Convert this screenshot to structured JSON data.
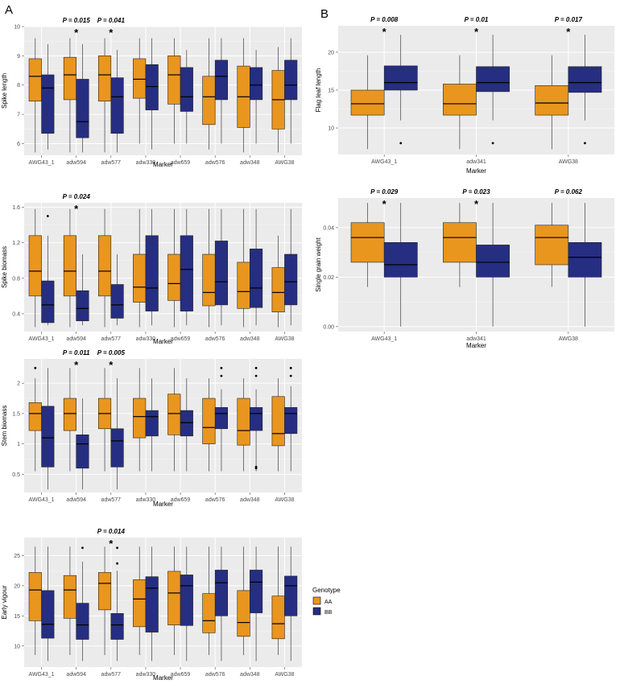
{
  "panel_labels": [
    "A",
    "B"
  ],
  "colors": {
    "AA": "#e8961e",
    "BB": "#262e82",
    "panel_bg": "#ebebeb",
    "grid": "#ffffff"
  },
  "legend": {
    "title": "Genotype",
    "items": [
      "AA",
      "BB"
    ]
  },
  "chart_data": [
    {
      "type": "box",
      "panel": "A",
      "xlabel": "Marker",
      "ylabel": "Spike length",
      "ylim": [
        5.6,
        10
      ],
      "yticks": [
        6,
        7,
        8,
        9,
        10
      ],
      "categories": [
        "AWG43_1",
        "adw594",
        "adw577",
        "adw330",
        "adw659",
        "adw576",
        "adw348",
        "AWG38"
      ],
      "series": [
        {
          "name": "AA",
          "boxes": [
            [
              5.7,
              7.45,
              8.3,
              8.9,
              9.6
            ],
            [
              5.7,
              7.5,
              8.35,
              8.95,
              9.6
            ],
            [
              5.7,
              7.45,
              8.35,
              9.0,
              9.6
            ],
            [
              6.0,
              7.55,
              8.2,
              8.9,
              9.6
            ],
            [
              6.0,
              7.35,
              8.35,
              9.0,
              9.6
            ],
            [
              5.8,
              6.65,
              7.6,
              8.3,
              9.6
            ],
            [
              5.7,
              6.55,
              7.6,
              8.65,
              9.6
            ],
            [
              5.7,
              6.5,
              7.5,
              8.5,
              9.3
            ]
          ]
        },
        {
          "name": "BB",
          "boxes": [
            [
              5.8,
              6.35,
              7.9,
              8.35,
              9.4
            ],
            [
              5.7,
              6.2,
              6.75,
              8.2,
              9.4
            ],
            [
              5.7,
              6.35,
              7.6,
              8.25,
              9.2
            ],
            [
              5.8,
              7.15,
              7.95,
              8.7,
              9.6
            ],
            [
              6.0,
              7.1,
              7.6,
              8.6,
              9.2
            ],
            [
              6.0,
              7.5,
              8.3,
              8.85,
              9.6
            ],
            [
              6.0,
              7.5,
              8.0,
              8.6,
              9.2
            ],
            [
              6.0,
              7.5,
              8.0,
              8.85,
              9.6
            ]
          ]
        }
      ],
      "outliers": [],
      "annotations": [
        {
          "category": "adw594",
          "p": "P = 0.015",
          "star": "*"
        },
        {
          "category": "adw577",
          "p": "P = 0.041",
          "star": "*"
        }
      ]
    },
    {
      "type": "box",
      "panel": "A",
      "xlabel": "Marker",
      "ylabel": "Spike biomass",
      "ylim": [
        0.2,
        1.65
      ],
      "yticks": [
        0.4,
        0.8,
        1.2,
        1.6
      ],
      "categories": [
        "AWG43_1",
        "adw594",
        "adw577",
        "adw330",
        "adw659",
        "adw576",
        "adw348",
        "AWG38"
      ],
      "series": [
        {
          "name": "AA",
          "boxes": [
            [
              0.25,
              0.6,
              0.88,
              1.28,
              1.58
            ],
            [
              0.25,
              0.6,
              0.88,
              1.28,
              1.58
            ],
            [
              0.25,
              0.6,
              0.88,
              1.28,
              1.58
            ],
            [
              0.25,
              0.53,
              0.7,
              1.07,
              1.58
            ],
            [
              0.25,
              0.55,
              0.74,
              1.07,
              1.58
            ],
            [
              0.25,
              0.49,
              0.64,
              1.07,
              1.58
            ],
            [
              0.25,
              0.46,
              0.65,
              0.98,
              1.58
            ],
            [
              0.25,
              0.42,
              0.64,
              0.92,
              1.28
            ]
          ]
        },
        {
          "name": "BB",
          "boxes": [
            [
              0.27,
              0.3,
              0.5,
              0.77,
              1.28
            ],
            [
              0.27,
              0.32,
              0.46,
              0.66,
              1.07
            ],
            [
              0.27,
              0.35,
              0.5,
              0.73,
              1.07
            ],
            [
              0.27,
              0.43,
              0.69,
              1.28,
              1.58
            ],
            [
              0.27,
              0.43,
              0.9,
              1.28,
              1.58
            ],
            [
              0.27,
              0.5,
              0.76,
              1.22,
              1.58
            ],
            [
              0.27,
              0.47,
              0.69,
              1.13,
              1.58
            ],
            [
              0.27,
              0.5,
              0.76,
              1.07,
              1.58
            ]
          ]
        }
      ],
      "outliers": [
        {
          "category": "AWG43_1",
          "series": "BB",
          "value": 1.5
        }
      ],
      "annotations": [
        {
          "category": "adw594",
          "p": "P = 0.024",
          "star": "*"
        }
      ]
    },
    {
      "type": "box",
      "panel": "A",
      "xlabel": "Marker",
      "ylabel": "Stem biomass",
      "ylim": [
        0.2,
        2.4
      ],
      "yticks": [
        0.5,
        1.0,
        1.5,
        2.0
      ],
      "categories": [
        "AWG43_1",
        "adw594",
        "adw577",
        "adw330",
        "adw659",
        "adw576",
        "adw348",
        "AWG38"
      ],
      "series": [
        {
          "name": "AA",
          "boxes": [
            [
              0.55,
              1.22,
              1.5,
              1.68,
              2.08
            ],
            [
              0.55,
              1.22,
              1.5,
              1.75,
              2.25
            ],
            [
              0.55,
              1.25,
              1.5,
              1.75,
              2.25
            ],
            [
              0.55,
              1.1,
              1.45,
              1.75,
              2.25
            ],
            [
              0.55,
              1.15,
              1.5,
              1.82,
              2.25
            ],
            [
              0.55,
              1.0,
              1.27,
              1.75,
              2.08
            ],
            [
              0.55,
              0.98,
              1.22,
              1.75,
              2.08
            ],
            [
              0.55,
              0.97,
              1.17,
              1.78,
              2.08
            ]
          ]
        },
        {
          "name": "BB",
          "boxes": [
            [
              0.25,
              0.62,
              1.1,
              1.62,
              2.25
            ],
            [
              0.25,
              0.6,
              1.0,
              1.15,
              1.75
            ],
            [
              0.25,
              0.62,
              1.05,
              1.25,
              2.08
            ],
            [
              0.55,
              1.13,
              1.45,
              1.55,
              2.08
            ],
            [
              0.55,
              1.13,
              1.35,
              1.55,
              2.08
            ],
            [
              0.55,
              1.25,
              1.5,
              1.6,
              1.9
            ],
            [
              0.55,
              1.22,
              1.5,
              1.6,
              1.9
            ],
            [
              0.55,
              1.17,
              1.5,
              1.6,
              1.95
            ]
          ]
        }
      ],
      "outliers": [
        {
          "category": "AWG43_1",
          "series": "AA",
          "value": 2.25
        },
        {
          "category": "adw576",
          "series": "BB",
          "value": 2.25
        },
        {
          "category": "adw576",
          "series": "BB",
          "value": 2.12
        },
        {
          "category": "adw348",
          "series": "BB",
          "value": 2.25
        },
        {
          "category": "adw348",
          "series": "BB",
          "value": 2.12
        },
        {
          "category": "adw348",
          "series": "BB",
          "value": 0.62
        },
        {
          "category": "adw348",
          "series": "BB",
          "value": 0.6
        },
        {
          "category": "AWG38",
          "series": "BB",
          "value": 2.25
        },
        {
          "category": "AWG38",
          "series": "BB",
          "value": 2.12
        }
      ],
      "annotations": [
        {
          "category": "adw594",
          "p": "P = 0.011",
          "star": "*"
        },
        {
          "category": "adw577",
          "p": "P = 0.005",
          "star": "*"
        }
      ]
    },
    {
      "type": "box",
      "panel": "A",
      "xlabel": "Marker",
      "ylabel": "Early vigour",
      "ylim": [
        6.5,
        28
      ],
      "yticks": [
        10,
        15,
        20,
        25
      ],
      "categories": [
        "AWG43_1",
        "adw594",
        "adw577",
        "adw330",
        "adw659",
        "adw576",
        "adw348",
        "AWG38"
      ],
      "series": [
        {
          "name": "AA",
          "boxes": [
            [
              8.5,
              14.2,
              19.3,
              22.2,
              26.5
            ],
            [
              8.5,
              14.6,
              19.3,
              21.7,
              26.5
            ],
            [
              8.5,
              16.0,
              20.4,
              22.2,
              26.5
            ],
            [
              8.5,
              13.2,
              17.8,
              21.0,
              26.5
            ],
            [
              8.5,
              13.5,
              18.8,
              22.4,
              26.5
            ],
            [
              8.5,
              12.2,
              14.2,
              18.7,
              26.5
            ],
            [
              8.5,
              11.6,
              13.9,
              19.2,
              26.5
            ],
            [
              8.5,
              11.2,
              13.7,
              18.3,
              26.5
            ]
          ]
        },
        {
          "name": "BB",
          "boxes": [
            [
              7.5,
              11.3,
              13.6,
              19.2,
              26.5
            ],
            [
              7.5,
              11.1,
              13.5,
              17.1,
              24.0
            ],
            [
              7.5,
              11.1,
              13.5,
              15.4,
              22.5
            ],
            [
              7.5,
              12.3,
              19.6,
              21.5,
              26.5
            ],
            [
              7.5,
              13.4,
              20.0,
              21.8,
              26.5
            ],
            [
              7.5,
              15.0,
              20.5,
              22.6,
              26.5
            ],
            [
              7.5,
              15.5,
              20.6,
              22.6,
              26.5
            ],
            [
              7.5,
              15.0,
              20.0,
              21.6,
              26.5
            ]
          ]
        }
      ],
      "outliers": [
        {
          "category": "adw594",
          "series": "BB",
          "value": 26.3
        },
        {
          "category": "adw577",
          "series": "BB",
          "value": 26.3
        },
        {
          "category": "adw577",
          "series": "BB",
          "value": 23.7
        }
      ],
      "annotations": [
        {
          "category": "adw577",
          "p": "P = 0.014",
          "star": "*"
        }
      ]
    },
    {
      "type": "box",
      "panel": "B",
      "xlabel": "Marker",
      "ylabel": "Flag leaf length",
      "ylim": [
        6.5,
        23.5
      ],
      "yticks": [
        10,
        15,
        20
      ],
      "categories": [
        "AWG43_1",
        "adw341",
        "AWG38"
      ],
      "series": [
        {
          "name": "AA",
          "boxes": [
            [
              7.2,
              11.7,
              13.2,
              15.0,
              19.6
            ],
            [
              7.2,
              11.7,
              13.2,
              15.8,
              19.6
            ],
            [
              7.2,
              11.7,
              13.3,
              15.6,
              19.6
            ]
          ]
        },
        {
          "name": "BB",
          "boxes": [
            [
              11.0,
              15.0,
              16.0,
              18.2,
              22.3
            ],
            [
              11.0,
              14.8,
              16.0,
              18.1,
              22.3
            ],
            [
              11.0,
              14.7,
              16.0,
              18.1,
              22.3
            ]
          ]
        }
      ],
      "outliers": [
        {
          "category": "AWG43_1",
          "series": "BB",
          "value": 8.0
        },
        {
          "category": "adw341",
          "series": "BB",
          "value": 8.0
        },
        {
          "category": "AWG38",
          "series": "BB",
          "value": 8.0
        }
      ],
      "annotations": [
        {
          "category": "AWG43_1",
          "p": "P = 0.008",
          "star": "*"
        },
        {
          "category": "adw341",
          "p": "P = 0.01",
          "star": "*"
        },
        {
          "category": "AWG38",
          "p": "P = 0.017",
          "star": "*"
        }
      ]
    },
    {
      "type": "box",
      "panel": "B",
      "xlabel": "Marker",
      "ylabel": "Single grain weight",
      "ylim": [
        -0.002,
        0.052
      ],
      "yticks": [
        0.0,
        0.02,
        0.04
      ],
      "ytick_labels": [
        "0.00",
        "0.02",
        "0.04"
      ],
      "categories": [
        "AWG43_1",
        "adw341",
        "AWG38"
      ],
      "series": [
        {
          "name": "AA",
          "boxes": [
            [
              0.016,
              0.026,
              0.036,
              0.042,
              0.05
            ],
            [
              0.016,
              0.026,
              0.036,
              0.042,
              0.05
            ],
            [
              0.016,
              0.025,
              0.036,
              0.041,
              0.05
            ]
          ]
        },
        {
          "name": "BB",
          "boxes": [
            [
              0.0,
              0.02,
              0.025,
              0.034,
              0.05
            ],
            [
              0.0,
              0.02,
              0.026,
              0.033,
              0.05
            ],
            [
              0.0,
              0.02,
              0.028,
              0.034,
              0.05
            ]
          ]
        }
      ],
      "outliers": [],
      "annotations": [
        {
          "category": "AWG43_1",
          "p": "P = 0.029",
          "star": "*"
        },
        {
          "category": "adw341",
          "p": "P = 0.023",
          "star": "*"
        },
        {
          "category": "AWG38",
          "p": "P = 0.062",
          "star": ""
        }
      ]
    }
  ]
}
